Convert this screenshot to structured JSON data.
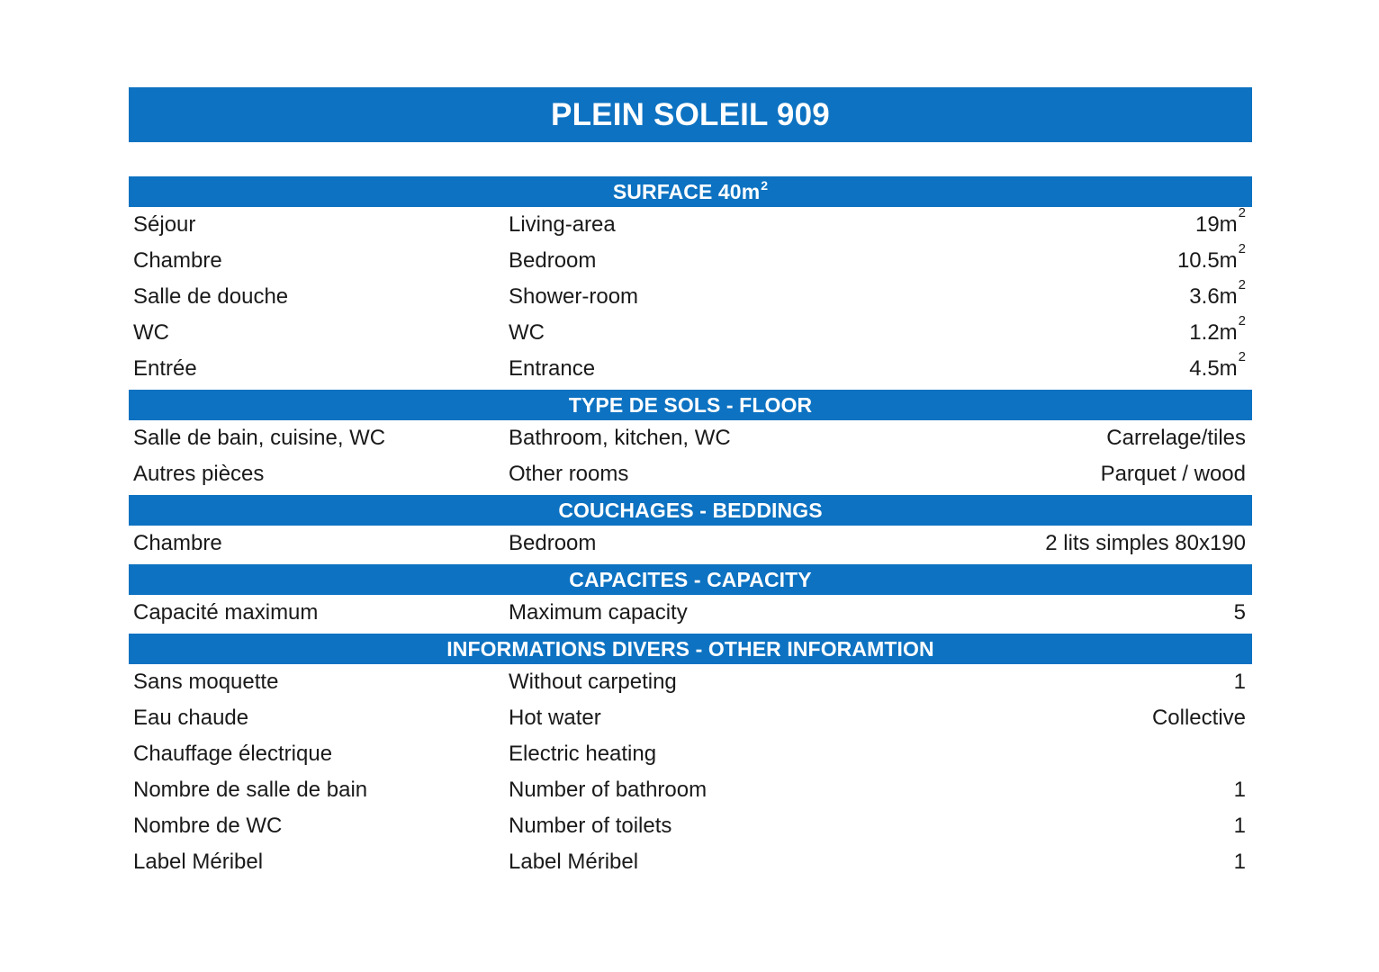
{
  "colors": {
    "accent_blue": "#0d72c1",
    "bar_text": "#ffffff",
    "body_text": "#1a1a1a"
  },
  "title": "PLEIN SOLEIL 909",
  "sections": [
    {
      "title_main": "SURFACE 40m",
      "title_sup": "2",
      "rows": [
        {
          "fr": "Séjour",
          "en": "Living-area",
          "value_main": "19m",
          "value_sup": "2"
        },
        {
          "fr": "Chambre",
          "en": "Bedroom",
          "value_main": "10.5m",
          "value_sup": "2"
        },
        {
          "fr": "Salle de douche",
          "en": "Shower-room",
          "value_main": "3.6m",
          "value_sup": "2"
        },
        {
          "fr": "WC",
          "en": "WC",
          "value_main": "1.2m",
          "value_sup": "2"
        },
        {
          "fr": "Entrée",
          "en": "Entrance",
          "value_main": "4.5m",
          "value_sup": "2"
        }
      ]
    },
    {
      "title_main": "TYPE DE SOLS - FLOOR",
      "rows": [
        {
          "fr": "Salle de bain, cuisine, WC",
          "en": "Bathroom, kitchen, WC",
          "value_main": "Carrelage/tiles"
        },
        {
          "fr": "Autres pièces",
          "en": "Other rooms",
          "value_main": "Parquet / wood"
        }
      ]
    },
    {
      "title_main": "COUCHAGES - BEDDINGS",
      "rows": [
        {
          "fr": "Chambre",
          "en": "Bedroom",
          "value_main": "2 lits simples 80x190"
        }
      ]
    },
    {
      "title_main": "CAPACITES - CAPACITY",
      "rows": [
        {
          "fr": "Capacité maximum",
          "en": "Maximum capacity",
          "value_main": "5"
        }
      ]
    },
    {
      "title_main": "INFORMATIONS DIVERS - OTHER INFORAMTION",
      "rows": [
        {
          "fr": "Sans moquette",
          "en": "Without carpeting",
          "value_main": "1"
        },
        {
          "fr": "Eau chaude",
          "en": "Hot water",
          "value_main": "Collective"
        },
        {
          "fr": "Chauffage électrique",
          "en": "Electric heating",
          "value_main": ""
        },
        {
          "fr": "Nombre de salle de bain",
          "en": "Number of bathroom",
          "value_main": "1"
        },
        {
          "fr": "Nombre de WC",
          "en": "Number of toilets",
          "value_main": "1"
        },
        {
          "fr": "Label Méribel",
          "en": "Label Méribel",
          "value_main": "1"
        }
      ]
    }
  ]
}
